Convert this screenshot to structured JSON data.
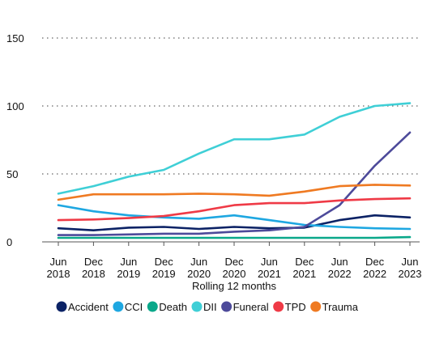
{
  "chart_data": {
    "type": "line",
    "title": "",
    "xlabel": "Rolling 12 months",
    "ylabel": "",
    "ylim": [
      0,
      150
    ],
    "yticks": [
      0,
      50,
      100,
      150
    ],
    "grid": "horizontal-dotted",
    "legend_position": "bottom",
    "categories": [
      [
        "Jun",
        "2018"
      ],
      [
        "Dec",
        "2018"
      ],
      [
        "Jun",
        "2019"
      ],
      [
        "Dec",
        "2019"
      ],
      [
        "Jun",
        "2020"
      ],
      [
        "Dec",
        "2020"
      ],
      [
        "Jun",
        "2021"
      ],
      [
        "Dec",
        "2021"
      ],
      [
        "Jun",
        "2022"
      ],
      [
        "Dec",
        "2022"
      ],
      [
        "Jun",
        "2023"
      ]
    ],
    "series": [
      {
        "name": "Accident",
        "color": "#0b2265",
        "values": [
          10,
          8.5,
          10.5,
          11,
          9.5,
          11,
          10,
          10.5,
          16,
          19.5,
          18
        ]
      },
      {
        "name": "CCI",
        "color": "#1ea7e1",
        "values": [
          27,
          22.5,
          19.5,
          18,
          17,
          19.5,
          16,
          12.5,
          11,
          10,
          9.5
        ]
      },
      {
        "name": "Death",
        "color": "#0aa88a",
        "values": [
          3,
          3,
          3,
          3,
          3,
          3,
          3,
          3,
          3,
          3,
          3.5
        ]
      },
      {
        "name": "DII",
        "color": "#3fcfd6",
        "values": [
          35.5,
          41,
          48,
          53,
          65,
          75.5,
          75.5,
          79,
          92,
          100,
          102
        ]
      },
      {
        "name": "Funeral",
        "color": "#4d4a9a",
        "values": [
          5,
          5,
          5.5,
          6,
          6,
          7.5,
          8.5,
          11,
          27,
          56,
          80.5
        ]
      },
      {
        "name": "TPD",
        "color": "#ef3a46",
        "values": [
          16,
          16.5,
          17.5,
          19,
          22.5,
          27,
          28.5,
          28.5,
          30.5,
          31.5,
          32
        ]
      },
      {
        "name": "Trauma",
        "color": "#ef7a22",
        "values": [
          31,
          35,
          35,
          35,
          35.5,
          35,
          34,
          37,
          41,
          42,
          41.5
        ]
      }
    ]
  }
}
